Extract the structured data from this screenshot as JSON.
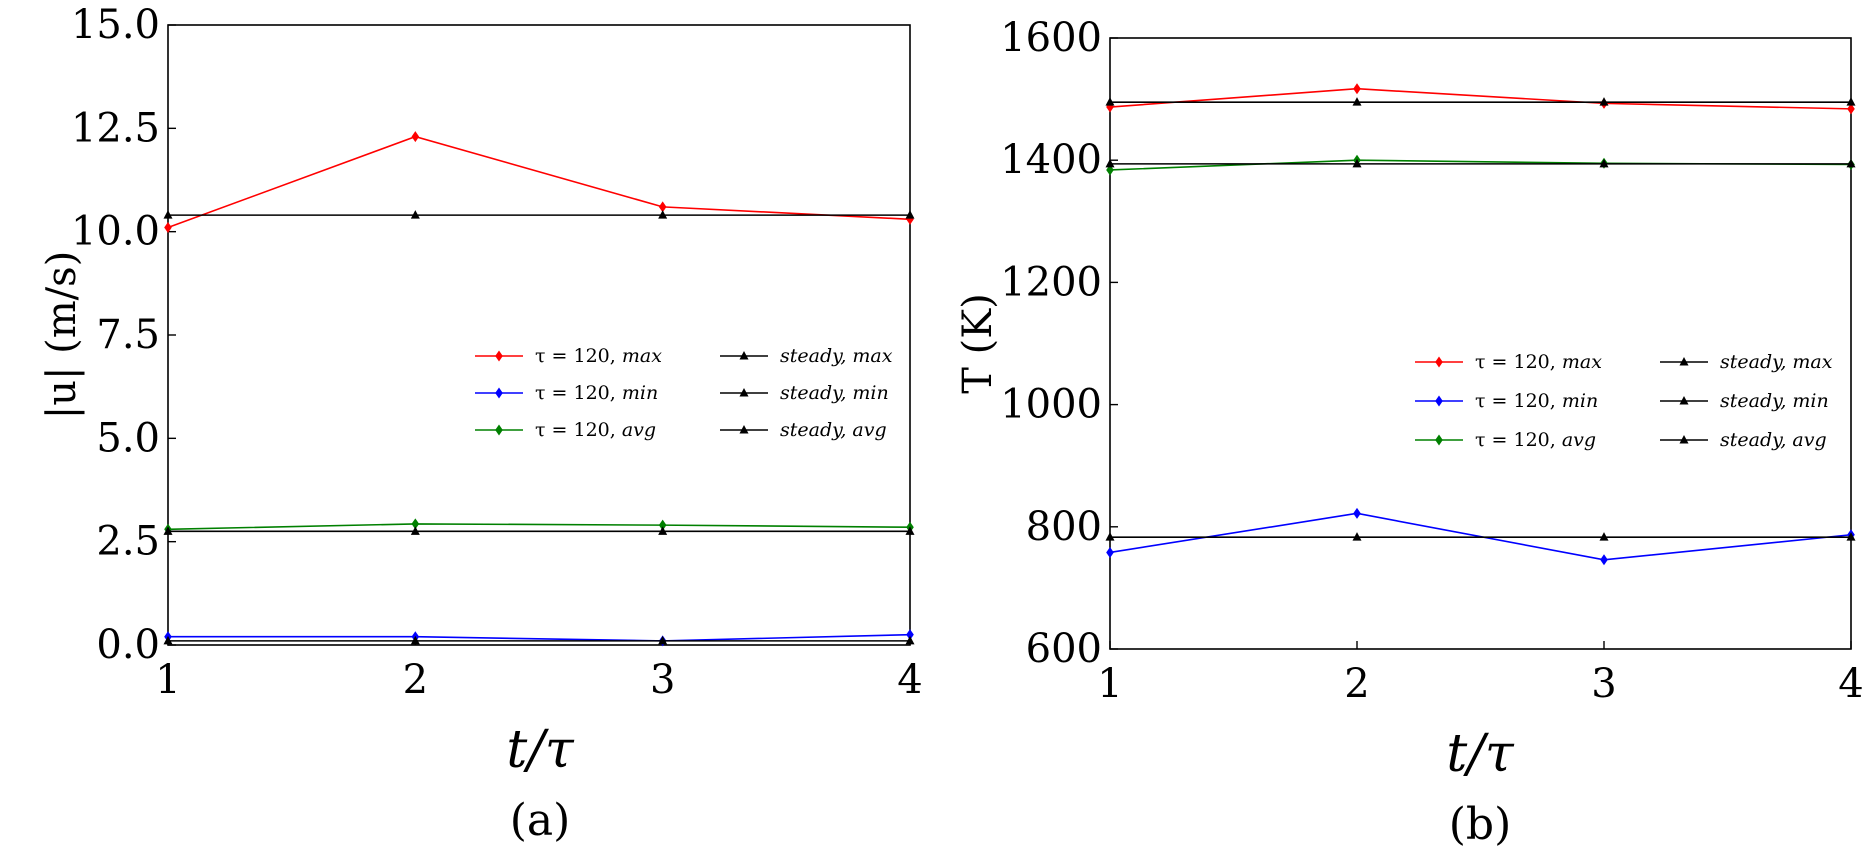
{
  "chart_data": [
    {
      "type": "line",
      "panel": "(a)",
      "xlabel": "t/τ",
      "ylabel": "|u| (m/s)",
      "xlim": [
        1,
        4
      ],
      "ylim": [
        0,
        15
      ],
      "xticks": [
        "1",
        "2",
        "3",
        "4"
      ],
      "yticks": [
        "0.0",
        "2.5",
        "5.0",
        "7.5",
        "10.0",
        "12.5",
        "15.0"
      ],
      "x": [
        1,
        2,
        3,
        4
      ],
      "series": [
        {
          "name": "τ=120, max",
          "prefix": "τ = 120, ",
          "suffix": "max",
          "color": "#ff0000",
          "marker": "diamond",
          "values": [
            10.1,
            12.3,
            10.6,
            10.3
          ]
        },
        {
          "name": "τ=120, min",
          "prefix": "τ = 120, ",
          "suffix": "min",
          "color": "#0000ff",
          "marker": "diamond",
          "values": [
            0.2,
            0.2,
            0.1,
            0.25
          ]
        },
        {
          "name": "τ=120, avg",
          "prefix": "τ = 120, ",
          "suffix": "avg",
          "color": "#008000",
          "marker": "diamond",
          "values": [
            2.8,
            2.93,
            2.9,
            2.85
          ]
        },
        {
          "name": "steady, max",
          "prefix": "",
          "suffix": "steady, max",
          "color": "#000000",
          "marker": "triangle",
          "values": [
            10.4,
            10.4,
            10.4,
            10.4
          ]
        },
        {
          "name": "steady, min",
          "prefix": "",
          "suffix": "steady, min",
          "color": "#000000",
          "marker": "triangle",
          "values": [
            0.1,
            0.1,
            0.1,
            0.1
          ]
        },
        {
          "name": "steady, avg",
          "prefix": "",
          "suffix": "steady, avg",
          "color": "#000000",
          "marker": "triangle",
          "values": [
            2.75,
            2.75,
            2.75,
            2.75
          ]
        }
      ],
      "legend": "center-right"
    },
    {
      "type": "line",
      "panel": "(b)",
      "xlabel": "t/τ",
      "ylabel": "T (K)",
      "xlim": [
        1,
        4
      ],
      "ylim": [
        600,
        1600
      ],
      "xticks": [
        "1",
        "2",
        "3",
        "4"
      ],
      "yticks": [
        "600",
        "800",
        "1000",
        "1200",
        "1400",
        "1600"
      ],
      "x": [
        1,
        2,
        3,
        4
      ],
      "series": [
        {
          "name": "τ=120, max",
          "prefix": "τ = 120, ",
          "suffix": "max",
          "color": "#ff0000",
          "marker": "diamond",
          "values": [
            1487,
            1517,
            1493,
            1484
          ]
        },
        {
          "name": "τ=120, min",
          "prefix": "τ = 120, ",
          "suffix": "min",
          "color": "#0000ff",
          "marker": "diamond",
          "values": [
            758,
            822,
            746,
            787
          ]
        },
        {
          "name": "τ=120, avg",
          "prefix": "τ = 120, ",
          "suffix": "avg",
          "color": "#008000",
          "marker": "diamond",
          "values": [
            1384,
            1400,
            1395,
            1393
          ]
        },
        {
          "name": "steady, max",
          "prefix": "",
          "suffix": "steady, max",
          "color": "#000000",
          "marker": "triangle",
          "values": [
            1495,
            1495,
            1495,
            1495
          ]
        },
        {
          "name": "steady, min",
          "prefix": "",
          "suffix": "steady, min",
          "color": "#000000",
          "marker": "triangle",
          "values": [
            783,
            783,
            783,
            783
          ]
        },
        {
          "name": "steady, avg",
          "prefix": "",
          "suffix": "steady, avg",
          "color": "#000000",
          "marker": "triangle",
          "values": [
            1394,
            1394,
            1394,
            1394
          ]
        }
      ],
      "legend": "center-right"
    }
  ]
}
